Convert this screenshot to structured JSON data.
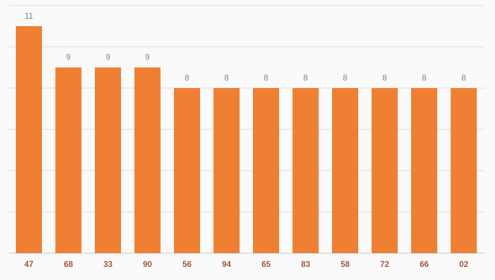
{
  "chart_data": {
    "type": "bar",
    "categories": [
      "47",
      "68",
      "33",
      "90",
      "56",
      "94",
      "65",
      "83",
      "58",
      "72",
      "66",
      "02"
    ],
    "values": [
      11,
      9,
      9,
      9,
      8,
      8,
      8,
      8,
      8,
      8,
      8,
      8
    ],
    "color": "#ef7f32",
    "ylim": [
      0,
      12
    ],
    "yticks": [
      0,
      2,
      4,
      6,
      8,
      10,
      12
    ],
    "grid": true
  }
}
